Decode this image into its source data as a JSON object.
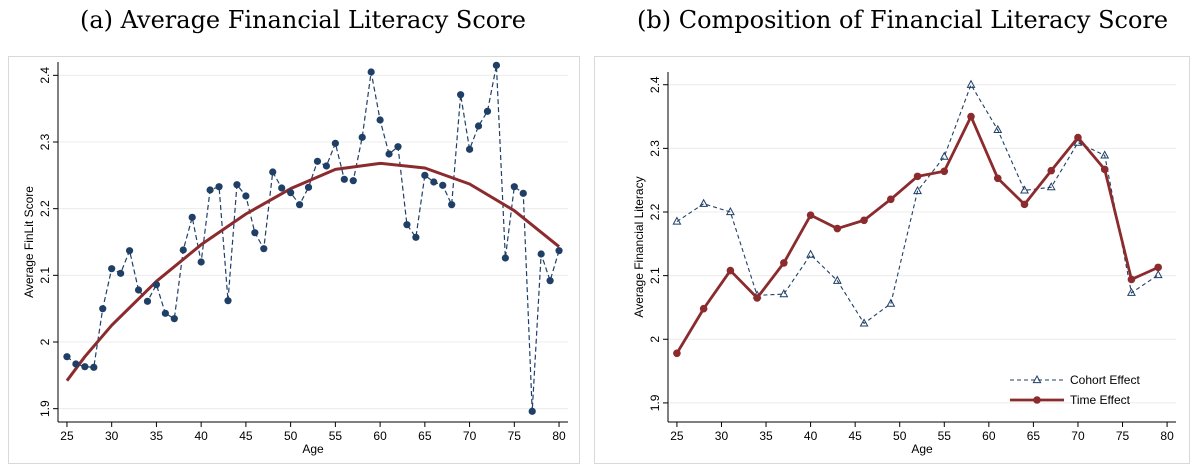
{
  "chart_data": [
    {
      "type": "scatter",
      "title": "(a) Average Financial Literacy Score",
      "xlabel": "Age",
      "ylabel": "Average FinLit Score",
      "xlim": [
        24,
        81
      ],
      "ylim": [
        1.88,
        2.42
      ],
      "xticks": [
        25,
        30,
        35,
        40,
        45,
        50,
        55,
        60,
        65,
        70,
        75,
        80
      ],
      "yticks": [
        1.9,
        2,
        2.1,
        2.2,
        2.3,
        2.4
      ],
      "grid": "horizontal",
      "series": [
        {
          "style": "dashed-line-with-dots",
          "color": "#1f3f66",
          "x": [
            25,
            26,
            27,
            28,
            29,
            30,
            31,
            32,
            33,
            34,
            35,
            36,
            37,
            38,
            39,
            40,
            41,
            42,
            43,
            44,
            45,
            46,
            47,
            48,
            49,
            50,
            51,
            52,
            53,
            54,
            55,
            56,
            57,
            58,
            59,
            60,
            61,
            62,
            63,
            64,
            65,
            66,
            67,
            68,
            69,
            70,
            71,
            72,
            73,
            74,
            75,
            76,
            77,
            78,
            79,
            80
          ],
          "y": [
            1.978,
            1.967,
            1.963,
            1.962,
            2.05,
            2.11,
            2.103,
            2.137,
            2.078,
            2.061,
            2.086,
            2.043,
            2.035,
            2.138,
            2.187,
            2.12,
            2.228,
            2.233,
            2.062,
            2.236,
            2.219,
            2.164,
            2.14,
            2.255,
            2.231,
            2.224,
            2.206,
            2.232,
            2.271,
            2.264,
            2.298,
            2.244,
            2.242,
            2.307,
            2.405,
            2.333,
            2.282,
            2.293,
            2.176,
            2.157,
            2.25,
            2.24,
            2.235,
            2.206,
            2.371,
            2.289,
            2.324,
            2.346,
            2.415,
            2.126,
            2.233,
            2.223,
            1.896,
            2.132,
            2.092,
            2.137
          ]
        },
        {
          "style": "fitted-curve",
          "color": "#8b2b2e",
          "x": [
            25,
            27,
            30,
            35,
            40,
            45,
            50,
            55,
            60,
            65,
            70,
            75,
            80
          ],
          "y": [
            1.942,
            1.978,
            2.025,
            2.091,
            2.146,
            2.192,
            2.23,
            2.259,
            2.268,
            2.261,
            2.237,
            2.197,
            2.143
          ]
        }
      ]
    },
    {
      "type": "line",
      "title": "(b) Composition of Financial Literacy Score",
      "xlabel": "Age",
      "ylabel": "Average Financial Literacy",
      "xlim": [
        24,
        81
      ],
      "ylim": [
        1.87,
        2.42
      ],
      "xticks": [
        25,
        30,
        35,
        40,
        45,
        50,
        55,
        60,
        65,
        70,
        75,
        80
      ],
      "yticks": [
        1.9,
        2,
        2.1,
        2.2,
        2.3,
        2.4
      ],
      "grid": "horizontal",
      "legend_position": "bottom-right",
      "x": [
        25,
        28,
        31,
        34,
        37,
        40,
        43,
        46,
        49,
        52,
        55,
        58,
        61,
        64,
        67,
        70,
        73,
        76,
        79
      ],
      "series": [
        {
          "name": "Cohort Effect",
          "style": "dashed-triangles",
          "color": "#1f3f66",
          "values": [
            2.185,
            2.213,
            2.2,
            2.069,
            2.071,
            2.133,
            2.092,
            2.025,
            2.056,
            2.233,
            2.287,
            2.4,
            2.329,
            2.234,
            2.239,
            2.309,
            2.289,
            2.073,
            2.101
          ]
        },
        {
          "name": "Time Effect",
          "style": "solid-dots",
          "color": "#8b2b2e",
          "values": [
            1.978,
            2.048,
            2.108,
            2.065,
            2.12,
            2.195,
            2.174,
            2.187,
            2.22,
            2.256,
            2.264,
            2.35,
            2.253,
            2.212,
            2.265,
            2.317,
            2.267,
            2.094,
            2.113
          ]
        }
      ]
    }
  ]
}
